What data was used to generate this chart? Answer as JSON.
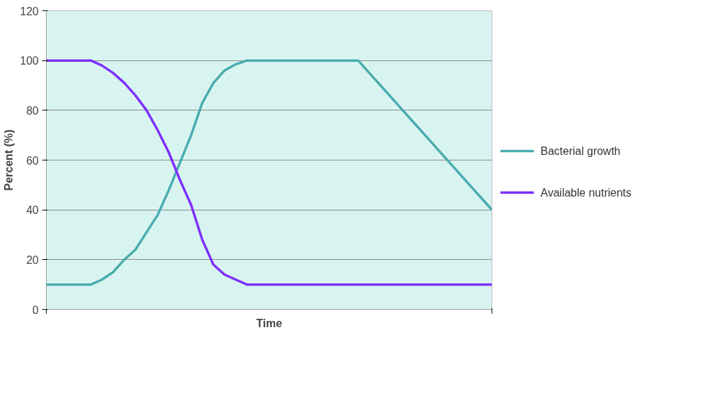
{
  "chart_data": {
    "type": "line",
    "xlabel": "Time",
    "ylabel": "Percent (%)",
    "categories": [
      null,
      null,
      null,
      null,
      null,
      null,
      null,
      null,
      null,
      null,
      null,
      null,
      null,
      null,
      null,
      null,
      null,
      null,
      null,
      null,
      null,
      null,
      null,
      null,
      null,
      null,
      null,
      null,
      null,
      null,
      null,
      null,
      null,
      null,
      null,
      null,
      null,
      null,
      null,
      null,
      null
    ],
    "series": [
      {
        "name": "Bacterial growth",
        "color": "#4aacb0",
        "values": [
          10,
          10,
          10,
          10,
          10,
          12,
          15,
          20,
          24,
          31,
          38,
          48,
          59,
          70,
          83,
          91,
          96,
          98.5,
          100,
          100,
          100,
          100,
          100,
          100,
          100,
          100,
          100,
          100,
          100,
          95,
          90,
          85,
          80,
          75,
          70,
          65,
          60,
          55,
          50,
          45,
          40
        ]
      },
      {
        "name": "Available nutrients",
        "color": "#7f2fff",
        "values": [
          100,
          100,
          100,
          100,
          100,
          98,
          95,
          91,
          86,
          80,
          72,
          63,
          52,
          42,
          28,
          18,
          14,
          12,
          10,
          10,
          10,
          10,
          10,
          10,
          10,
          10,
          10,
          10,
          10,
          10,
          10,
          10,
          10,
          10,
          10,
          10,
          10,
          10,
          10,
          10,
          10
        ]
      }
    ],
    "ylim": [
      0,
      120
    ],
    "yticks": [
      0,
      20,
      40,
      60,
      80,
      100,
      120
    ],
    "grid": "y",
    "legend": "right",
    "marker": "none",
    "line_style": "solid"
  }
}
